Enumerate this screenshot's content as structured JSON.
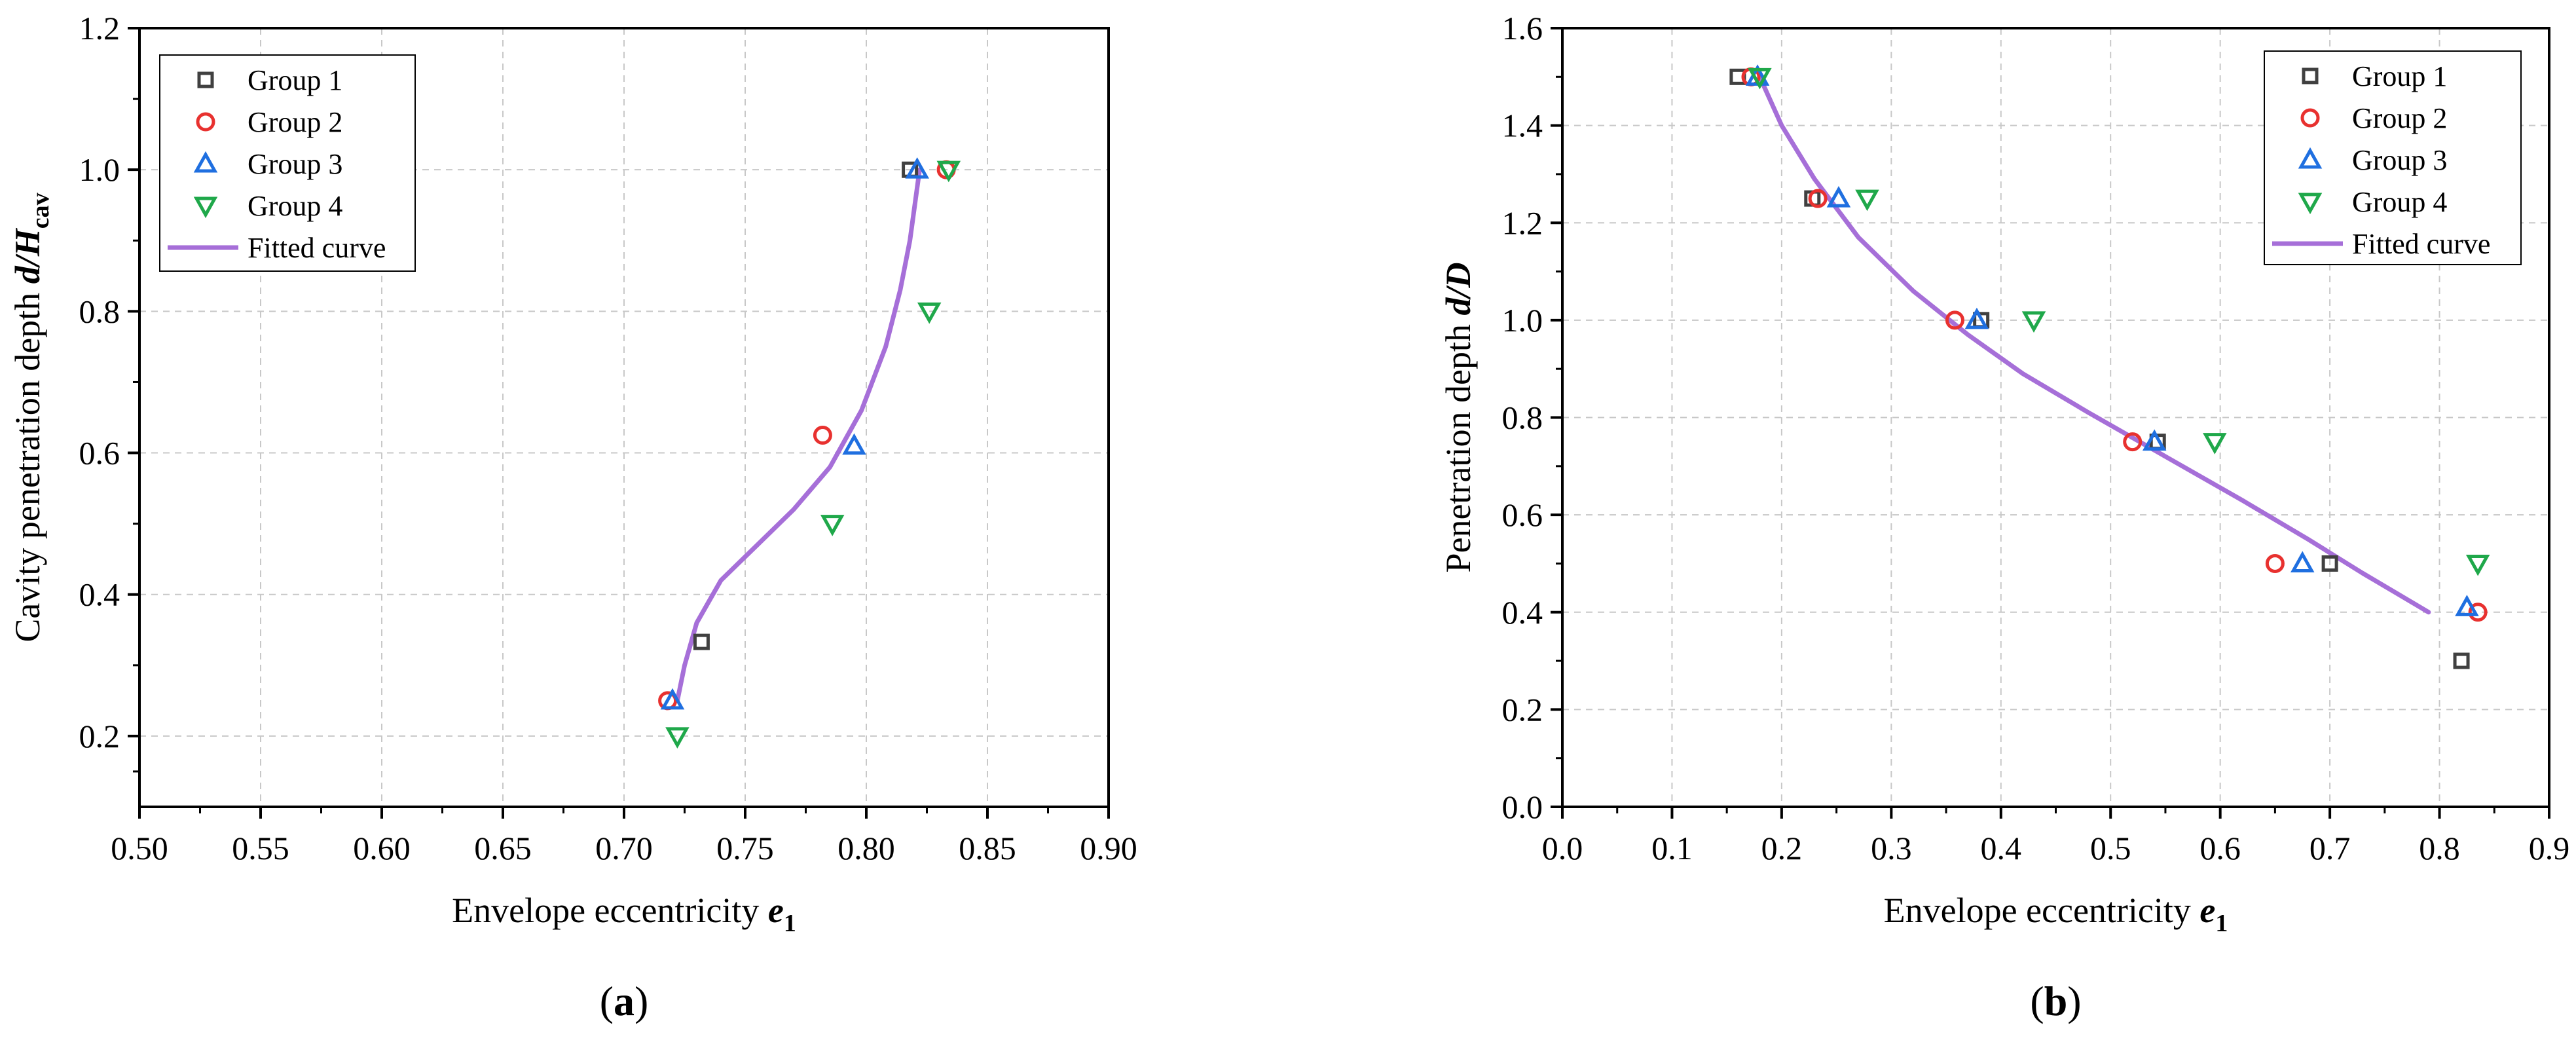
{
  "figure": {
    "colors": {
      "group1": "#404040",
      "group2": "#e8312f",
      "group3": "#1f6fe0",
      "group4": "#1fa84a",
      "fitted": "#a66fd8"
    },
    "panels": [
      {
        "panel_label": "(a)",
        "panel_letter": "a",
        "xlabel": "Envelope eccentricity ",
        "xlabel_var": "e",
        "xlabel_sub": "1",
        "ylabel": "Cavity penetration depth ",
        "ylabel_var": "d/H",
        "ylabel_sub": "cav",
        "legend": [
          "Group 1",
          "Group 2",
          "Group 3",
          "Group 4",
          "Fitted curve"
        ]
      },
      {
        "panel_label": "(b)",
        "panel_letter": "b",
        "xlabel": "Envelope eccentricity ",
        "xlabel_var": "e",
        "xlabel_sub": "1",
        "ylabel": "Penetration depth ",
        "ylabel_var": "d/D",
        "ylabel_sub": "",
        "legend": [
          "Group 1",
          "Group 2",
          "Group 3",
          "Group 4",
          "Fitted curve"
        ]
      }
    ]
  },
  "chart_data": [
    {
      "type": "scatter",
      "title": "",
      "xlabel": "Envelope eccentricity e1",
      "ylabel": "Cavity penetration depth d/Hcav",
      "xlim": [
        0.5,
        0.9
      ],
      "ylim": [
        0.1,
        1.2
      ],
      "xticks": [
        "0.50",
        "0.55",
        "0.60",
        "0.65",
        "0.70",
        "0.75",
        "0.80",
        "0.85",
        "0.90"
      ],
      "yticks": [
        "0.2",
        "0.4",
        "0.6",
        "0.8",
        "1.0",
        "1.2"
      ],
      "grid": true,
      "legend_position": "top-left",
      "series": [
        {
          "name": "Group 1",
          "marker": "square",
          "x": [
            0.732,
            0.818
          ],
          "y": [
            0.333,
            1.0
          ]
        },
        {
          "name": "Group 2",
          "marker": "circle",
          "x": [
            0.718,
            0.782,
            0.833
          ],
          "y": [
            0.25,
            0.625,
            1.0
          ]
        },
        {
          "name": "Group 3",
          "marker": "triangle-up",
          "x": [
            0.72,
            0.795,
            0.821
          ],
          "y": [
            0.25,
            0.61,
            1.0
          ]
        },
        {
          "name": "Group 4",
          "marker": "triangle-down",
          "x": [
            0.722,
            0.786,
            0.826,
            0.834
          ],
          "y": [
            0.2,
            0.5,
            0.8,
            1.0
          ]
        },
        {
          "name": "Fitted curve",
          "line": true,
          "x": [
            0.722,
            0.725,
            0.73,
            0.74,
            0.755,
            0.77,
            0.785,
            0.798,
            0.808,
            0.814,
            0.818,
            0.82,
            0.822
          ],
          "y": [
            0.25,
            0.3,
            0.36,
            0.42,
            0.47,
            0.52,
            0.58,
            0.66,
            0.75,
            0.83,
            0.9,
            0.95,
            1.0
          ]
        }
      ]
    },
    {
      "type": "scatter",
      "title": "",
      "xlabel": "Envelope eccentricity e1",
      "ylabel": "Penetration depth d/D",
      "xlim": [
        0.0,
        0.9
      ],
      "ylim": [
        0.0,
        1.6
      ],
      "xticks": [
        "0.0",
        "0.1",
        "0.2",
        "0.3",
        "0.4",
        "0.5",
        "0.6",
        "0.7",
        "0.8",
        "0.9"
      ],
      "yticks": [
        "0.0",
        "0.2",
        "0.4",
        "0.6",
        "0.8",
        "1.0",
        "1.2",
        "1.4",
        "1.6"
      ],
      "grid": true,
      "legend_position": "top-right",
      "series": [
        {
          "name": "Group 1",
          "marker": "square",
          "x": [
            0.16,
            0.228,
            0.382,
            0.543,
            0.7,
            0.82
          ],
          "y": [
            1.5,
            1.25,
            1.0,
            0.75,
            0.5,
            0.3
          ]
        },
        {
          "name": "Group 2",
          "marker": "circle",
          "x": [
            0.172,
            0.233,
            0.358,
            0.52,
            0.65,
            0.835
          ],
          "y": [
            1.5,
            1.25,
            1.0,
            0.75,
            0.5,
            0.4
          ]
        },
        {
          "name": "Group 3",
          "marker": "triangle-up",
          "x": [
            0.178,
            0.252,
            0.378,
            0.54,
            0.675,
            0.825
          ],
          "y": [
            1.5,
            1.25,
            1.0,
            0.75,
            0.5,
            0.41
          ]
        },
        {
          "name": "Group 4",
          "marker": "triangle-down",
          "x": [
            0.18,
            0.278,
            0.43,
            0.595,
            0.835
          ],
          "y": [
            1.5,
            1.25,
            1.0,
            0.75,
            0.5
          ]
        },
        {
          "name": "Fitted curve",
          "line": true,
          "x": [
            0.18,
            0.2,
            0.23,
            0.27,
            0.32,
            0.37,
            0.42,
            0.48,
            0.55,
            0.62,
            0.68,
            0.73,
            0.76,
            0.79
          ],
          "y": [
            1.5,
            1.4,
            1.29,
            1.17,
            1.06,
            0.97,
            0.89,
            0.81,
            0.72,
            0.63,
            0.55,
            0.48,
            0.44,
            0.4
          ]
        }
      ]
    }
  ]
}
